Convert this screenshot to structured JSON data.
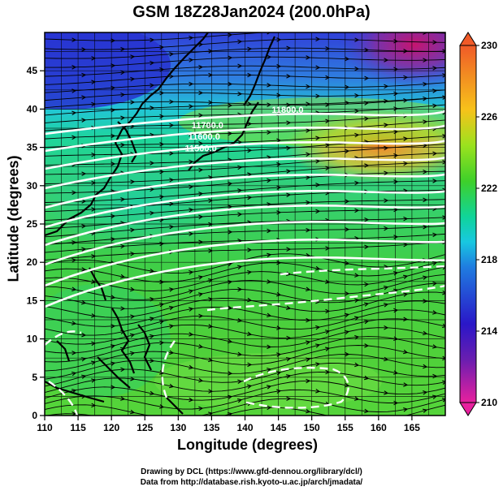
{
  "title": "GSM 18Z28Jan2024 (200.0hPa)",
  "xlabel": "Longitude (degrees)",
  "ylabel": "Latitude (degrees)",
  "credit_line1": "Drawing by DCL (https://www.gfd-dennou.org/library/dcl/)",
  "credit_line2": "Data from http://database.rish.kyoto-u.ac.jp/arch/jmadata/",
  "chart_data": {
    "type": "heatmap",
    "x_ticks": [
      110,
      115,
      120,
      125,
      130,
      135,
      140,
      145,
      150,
      155,
      160,
      165
    ],
    "y_ticks": [
      0,
      5,
      10,
      15,
      20,
      25,
      30,
      35,
      40,
      45
    ],
    "xlim": [
      110,
      170
    ],
    "ylim": [
      0,
      50
    ],
    "colorbar": {
      "ticks": [
        230,
        226,
        222,
        218,
        214,
        210
      ],
      "range": [
        210,
        230
      ],
      "stops": [
        "#e8209e",
        "#2a17c8",
        "#18b8e8",
        "#10d49a",
        "#3ed02a",
        "#9be21e",
        "#f7c21a",
        "#f05a28"
      ]
    },
    "contour_labels": [
      {
        "text": "11800.0",
        "lon": 144,
        "lat": 39.5
      },
      {
        "text": "11700.0",
        "lon": 132,
        "lat": 37.5
      },
      {
        "text": "11600.0",
        "lon": 131.5,
        "lat": 36
      },
      {
        "text": "11500.0",
        "lon": 131,
        "lat": 34.5
      }
    ],
    "features": [
      "temperature shading",
      "geopotential height contours (white)",
      "wind streamlines (black)",
      "coastlines"
    ]
  }
}
